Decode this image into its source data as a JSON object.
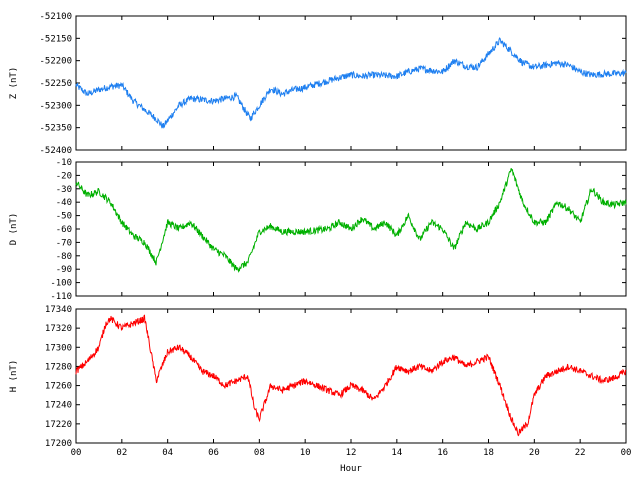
{
  "chart_data": [
    {
      "type": "line",
      "ylabel": "Z (nT)",
      "xlabel": "",
      "xlim": [
        0,
        24
      ],
      "ylim": [
        -52400,
        -52100
      ],
      "yticks": [
        -52100,
        -52150,
        -52200,
        -52250,
        -52300,
        -52350,
        -52400
      ],
      "grid": false,
      "color": "#2080f0",
      "series": [
        {
          "x": [
            0,
            0.5,
            1,
            1.5,
            2,
            2.5,
            3,
            3.5,
            3.8,
            4.5,
            5,
            6,
            7,
            7.6,
            8,
            8.5,
            9,
            9.5,
            10,
            11,
            11.5,
            12,
            12.5,
            13,
            14,
            14.5,
            15,
            16,
            16.5,
            17,
            17.5,
            18,
            18.5,
            19,
            19.5,
            20,
            20.5,
            21,
            21.5,
            22,
            22.5,
            23,
            24
          ],
          "y": [
            -52255,
            -52275,
            -52265,
            -52258,
            -52255,
            -52290,
            -52310,
            -52330,
            -52348,
            -52300,
            -52285,
            -52290,
            -52280,
            -52330,
            -52300,
            -52262,
            -52275,
            -52265,
            -52260,
            -52245,
            -52238,
            -52232,
            -52235,
            -52232,
            -52235,
            -52225,
            -52218,
            -52225,
            -52200,
            -52212,
            -52215,
            -52185,
            -52155,
            -52180,
            -52205,
            -52215,
            -52210,
            -52205,
            -52210,
            -52225,
            -52232,
            -52230,
            -52228
          ]
        }
      ]
    },
    {
      "type": "line",
      "ylabel": "D (nT)",
      "xlabel": "",
      "xlim": [
        0,
        24
      ],
      "ylim": [
        -110,
        -10
      ],
      "yticks": [
        -10,
        -20,
        -30,
        -40,
        -50,
        -60,
        -70,
        -80,
        -90,
        -100,
        -110
      ],
      "grid": false,
      "color": "#00b000",
      "series": [
        {
          "x": [
            0,
            0.5,
            1,
            1.5,
            2,
            2.5,
            3,
            3.5,
            4,
            4.5,
            5,
            5.5,
            6,
            6.5,
            7,
            7.5,
            8,
            8.5,
            9,
            10,
            11,
            11.5,
            12,
            12.5,
            13,
            13.5,
            14,
            14.5,
            15,
            15.5,
            16,
            16.5,
            17,
            17.5,
            18,
            18.5,
            19,
            19.5,
            20,
            20.5,
            21,
            21.5,
            22,
            22.5,
            23,
            23.5,
            24
          ],
          "y": [
            -25,
            -35,
            -32,
            -40,
            -55,
            -65,
            -70,
            -85,
            -55,
            -60,
            -55,
            -65,
            -75,
            -80,
            -90,
            -85,
            -62,
            -58,
            -62,
            -62,
            -60,
            -55,
            -60,
            -52,
            -60,
            -55,
            -65,
            -50,
            -68,
            -55,
            -60,
            -75,
            -55,
            -60,
            -55,
            -40,
            -15,
            -40,
            -55,
            -55,
            -40,
            -45,
            -55,
            -30,
            -40,
            -42,
            -40
          ]
        }
      ]
    },
    {
      "type": "line",
      "ylabel": "H (nT)",
      "xlabel": "Hour",
      "xlim": [
        0,
        24
      ],
      "ylim": [
        17200,
        17340
      ],
      "yticks": [
        17340,
        17320,
        17300,
        17280,
        17260,
        17240,
        17220,
        17200
      ],
      "grid": false,
      "color": "#ff0000",
      "xticks": [
        "00",
        "02",
        "04",
        "06",
        "08",
        "10",
        "12",
        "14",
        "16",
        "18",
        "20",
        "22",
        "00"
      ],
      "series": [
        {
          "x": [
            0,
            0.5,
            1,
            1.3,
            1.5,
            2,
            2.5,
            3,
            3.5,
            4,
            4.5,
            5,
            5.5,
            6,
            6.5,
            7,
            7.5,
            7.8,
            8,
            8.5,
            9,
            10,
            10.5,
            11,
            11.5,
            12,
            12.5,
            13,
            13.5,
            14,
            14.5,
            15,
            15.5,
            16,
            16.5,
            17,
            17.5,
            18,
            18.5,
            19,
            19.3,
            19.7,
            20,
            20.5,
            21,
            21.5,
            22,
            22.5,
            23,
            23.5,
            24
          ],
          "y": [
            17275,
            17285,
            17300,
            17325,
            17330,
            17320,
            17325,
            17330,
            17265,
            17295,
            17300,
            17290,
            17275,
            17270,
            17260,
            17265,
            17270,
            17235,
            17225,
            17260,
            17255,
            17265,
            17260,
            17255,
            17250,
            17260,
            17255,
            17245,
            17260,
            17280,
            17275,
            17280,
            17275,
            17285,
            17290,
            17280,
            17285,
            17290,
            17260,
            17225,
            17210,
            17220,
            17250,
            17270,
            17275,
            17280,
            17275,
            17270,
            17265,
            17268,
            17275
          ]
        }
      ]
    }
  ]
}
